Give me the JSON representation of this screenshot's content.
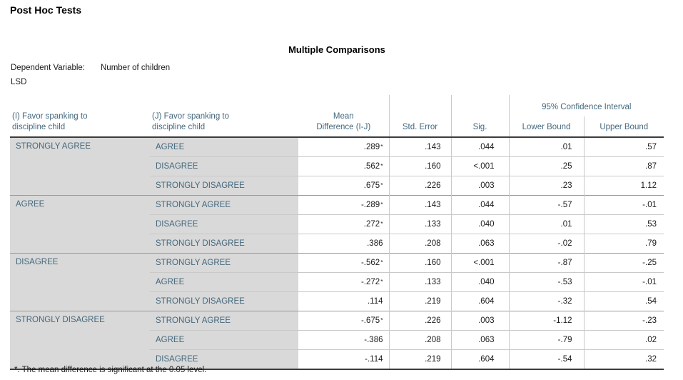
{
  "page": {
    "section_title": "Post Hoc Tests",
    "table_title": "Multiple Comparisons",
    "dependent_variable_label": "Dependent Variable:",
    "dependent_variable_value": "Number of children",
    "method": "LSD",
    "significance_marker": "*",
    "footnote": "*. The mean difference is significant at the 0.05 level."
  },
  "colors": {
    "label_text": "#44687d",
    "label_background": "#d9d9d9",
    "grid_light": "#c9c9c9",
    "group_divider": "#999999",
    "grid_strong": "#3c3c3c",
    "data_text": "#1a1a1a"
  },
  "table": {
    "header": {
      "i_column_lines": [
        "(I) Favor spanking to",
        "discipline child"
      ],
      "j_column_lines": [
        "(J) Favor spanking to",
        "discipline child"
      ],
      "mean_diff_lines": [
        "Mean",
        "Difference (I-J)"
      ],
      "std_error": "Std. Error",
      "sig": "Sig.",
      "ci_span": "95% Confidence Interval",
      "lower_bound": "Lower Bound",
      "upper_bound": "Upper Bound"
    },
    "groups": [
      {
        "i": "STRONGLY AGREE",
        "rows": [
          {
            "j": "AGREE",
            "mean_diff": ".289",
            "starred": true,
            "std_error": ".143",
            "sig": ".044",
            "lower": ".01",
            "upper": ".57"
          },
          {
            "j": "DISAGREE",
            "mean_diff": ".562",
            "starred": true,
            "std_error": ".160",
            "sig": "<.001",
            "lower": ".25",
            "upper": ".87"
          },
          {
            "j": "STRONGLY DISAGREE",
            "mean_diff": ".675",
            "starred": true,
            "std_error": ".226",
            "sig": ".003",
            "lower": ".23",
            "upper": "1.12"
          }
        ]
      },
      {
        "i": "AGREE",
        "rows": [
          {
            "j": "STRONGLY AGREE",
            "mean_diff": "-.289",
            "starred": true,
            "std_error": ".143",
            "sig": ".044",
            "lower": "-.57",
            "upper": "-.01"
          },
          {
            "j": "DISAGREE",
            "mean_diff": ".272",
            "starred": true,
            "std_error": ".133",
            "sig": ".040",
            "lower": ".01",
            "upper": ".53"
          },
          {
            "j": "STRONGLY DISAGREE",
            "mean_diff": ".386",
            "starred": false,
            "std_error": ".208",
            "sig": ".063",
            "lower": "-.02",
            "upper": ".79"
          }
        ]
      },
      {
        "i": "DISAGREE",
        "rows": [
          {
            "j": "STRONGLY AGREE",
            "mean_diff": "-.562",
            "starred": true,
            "std_error": ".160",
            "sig": "<.001",
            "lower": "-.87",
            "upper": "-.25"
          },
          {
            "j": "AGREE",
            "mean_diff": "-.272",
            "starred": true,
            "std_error": ".133",
            "sig": ".040",
            "lower": "-.53",
            "upper": "-.01"
          },
          {
            "j": "STRONGLY DISAGREE",
            "mean_diff": ".114",
            "starred": false,
            "std_error": ".219",
            "sig": ".604",
            "lower": "-.32",
            "upper": ".54"
          }
        ]
      },
      {
        "i": "STRONGLY DISAGREE",
        "rows": [
          {
            "j": "STRONGLY AGREE",
            "mean_diff": "-.675",
            "starred": true,
            "std_error": ".226",
            "sig": ".003",
            "lower": "-1.12",
            "upper": "-.23"
          },
          {
            "j": "AGREE",
            "mean_diff": "-.386",
            "starred": false,
            "std_error": ".208",
            "sig": ".063",
            "lower": "-.79",
            "upper": ".02"
          },
          {
            "j": "DISAGREE",
            "mean_diff": "-.114",
            "starred": false,
            "std_error": ".219",
            "sig": ".604",
            "lower": "-.54",
            "upper": ".32"
          }
        ]
      }
    ]
  }
}
